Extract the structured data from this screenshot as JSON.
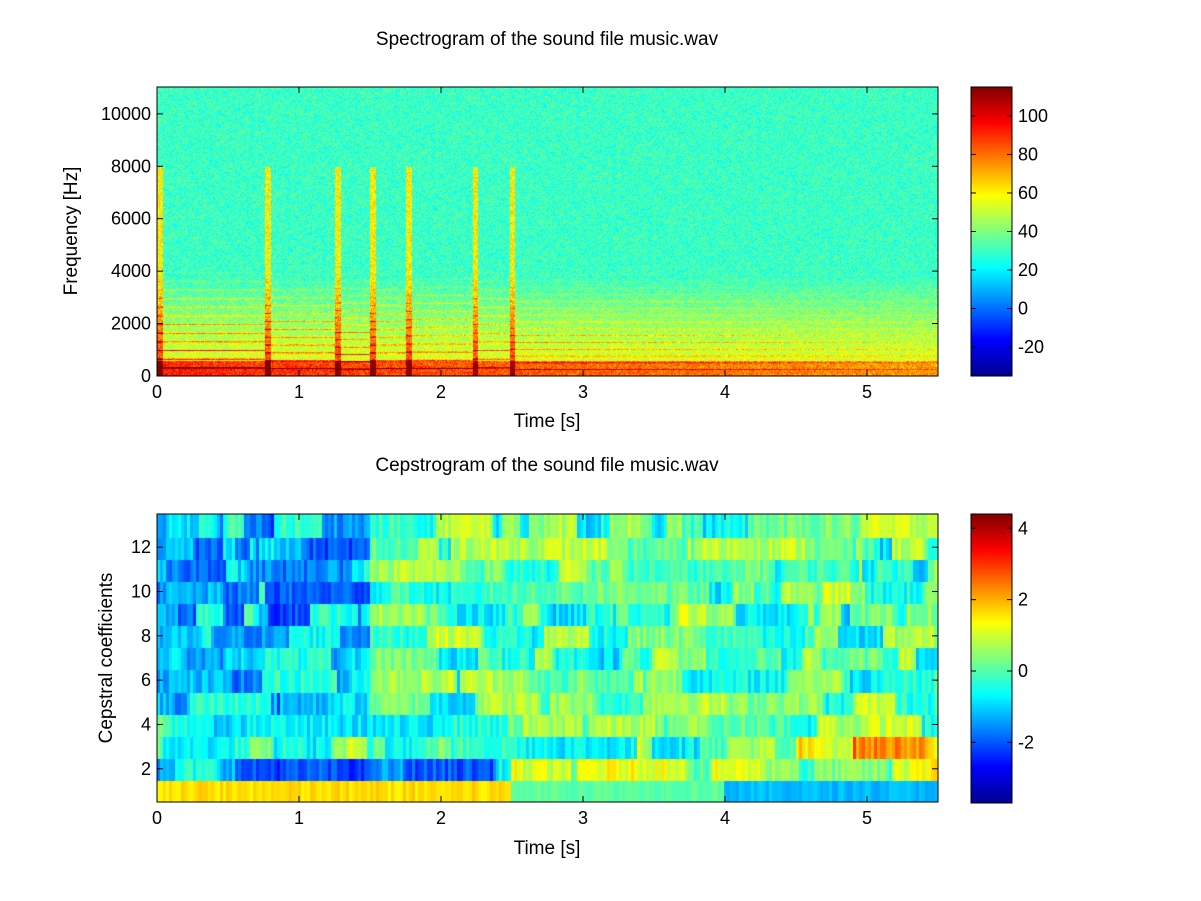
{
  "chart_data": [
    {
      "type": "heatmap",
      "title": "Spectrogram of the sound file music.wav",
      "xlabel": "Time [s]",
      "ylabel": "Frequency [Hz]",
      "xlim": [
        0,
        5.5
      ],
      "ylim": [
        0,
        11025
      ],
      "xticks": [
        "0",
        "1",
        "2",
        "3",
        "4",
        "5"
      ],
      "xtick_values": [
        0,
        1,
        2,
        3,
        4,
        5
      ],
      "yticks": [
        "0",
        "2000",
        "4000",
        "6000",
        "8000",
        "10000"
      ],
      "ytick_values": [
        0,
        2000,
        4000,
        6000,
        8000,
        10000
      ],
      "colormap": "jet",
      "clim": [
        -35,
        115
      ],
      "colorbar_ticks": [
        "-20",
        "0",
        "20",
        "40",
        "60",
        "80",
        "100"
      ],
      "colorbar_tick_values": [
        -20,
        0,
        20,
        40,
        60,
        80,
        100
      ],
      "note_onsets_s": [
        0.0,
        0.76,
        1.25,
        1.5,
        1.75,
        2.22,
        2.48
      ],
      "fundamental_hz": [
        330,
        300,
        280,
        300,
        310,
        330,
        260,
        250
      ],
      "grid": false
    },
    {
      "type": "heatmap",
      "title": "Cepstrogram of the sound file music.wav",
      "xlabel": "Time [s]",
      "ylabel": "Cepstral coefficients",
      "xlim": [
        0,
        5.5
      ],
      "ylim": [
        0.5,
        13.5
      ],
      "xticks": [
        "0",
        "1",
        "2",
        "3",
        "4",
        "5"
      ],
      "xtick_values": [
        0,
        1,
        2,
        3,
        4,
        5
      ],
      "yticks": [
        "2",
        "4",
        "6",
        "8",
        "10",
        "12"
      ],
      "ytick_values": [
        2,
        4,
        6,
        8,
        10,
        12
      ],
      "coefficients": [
        1,
        2,
        3,
        4,
        5,
        6,
        7,
        8,
        9,
        10,
        11,
        12,
        13
      ],
      "colormap": "jet",
      "clim": [
        -3.7,
        4.4
      ],
      "colorbar_ticks": [
        "-2",
        "0",
        "2",
        "4"
      ],
      "colorbar_tick_values": [
        -2,
        0,
        2,
        4
      ],
      "grid": false
    }
  ]
}
